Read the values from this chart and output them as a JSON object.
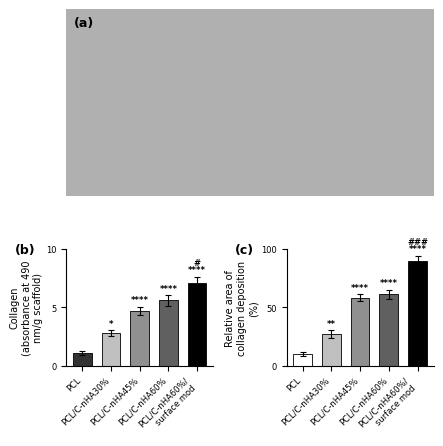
{
  "panel_b": {
    "categories": [
      "PCL",
      "PCL/C-nHA30%",
      "PCL/C-nHA45%",
      "PCL/C-nHA60%",
      "PCL/C-nHA60%/\nsurface mod"
    ],
    "values": [
      1.1,
      2.8,
      4.7,
      5.6,
      7.1
    ],
    "errors": [
      0.15,
      0.25,
      0.35,
      0.45,
      0.5
    ],
    "colors": [
      "#333333",
      "#c0c0c0",
      "#909090",
      "#606060",
      "#000000"
    ],
    "ylabel": "Collagen\n(absorbance at 490\nnm/g scaffold)",
    "ylim": [
      0,
      10
    ],
    "yticks": [
      0,
      5,
      10
    ],
    "significance": [
      "",
      "*",
      "****",
      "****",
      "****"
    ],
    "sig2": [
      "",
      "",
      "",
      "",
      "#"
    ],
    "title": "(b)"
  },
  "panel_c": {
    "categories": [
      "PCL",
      "PCL/C-nHA30%",
      "PCL/C-nHA45%",
      "PCL/C-nHA60%",
      "PCL/C-nHA60%/\nsurface mod"
    ],
    "values": [
      10,
      27,
      58,
      61,
      90
    ],
    "errors": [
      2,
      3.5,
      3,
      4,
      4
    ],
    "colors": [
      "#ffffff",
      "#c0c0c0",
      "#909090",
      "#606060",
      "#000000"
    ],
    "ylabel": "Relative area of\ncollagen deposition\n(%)",
    "ylim": [
      0,
      100
    ],
    "yticks": [
      0,
      50,
      100
    ],
    "significance": [
      "",
      "**",
      "****",
      "****",
      "****"
    ],
    "sig2": [
      "",
      "",
      "",
      "",
      "###"
    ],
    "title": "(c)"
  },
  "panel_a_label": "(a)",
  "figure_bgcolor": "#ffffff",
  "bar_width": 0.65,
  "tick_fontsize": 6,
  "label_fontsize": 7,
  "sig_fontsize": 6
}
